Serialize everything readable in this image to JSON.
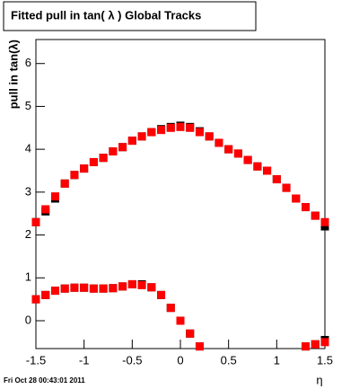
{
  "chart_data": {
    "type": "scatter",
    "title": "Fitted pull in tan( λ )  Global Tracks",
    "y_label": "pull in tan(λ)",
    "x_label": "η",
    "timestamp": "Fri Oct 28 00:43:01 2011",
    "xlim": [
      -1.5,
      1.5
    ],
    "ylim": [
      -0.65,
      6.56
    ],
    "xticks": [
      -1.5,
      -1,
      -0.5,
      0,
      0.5,
      1,
      1.5
    ],
    "yticks": [
      0,
      1,
      2,
      3,
      4,
      5,
      6
    ],
    "series": [
      {
        "color": "#000000",
        "x": [
          -1.5,
          -1.4,
          -1.3,
          -1.2,
          -1.1,
          -1.0,
          -0.9,
          -0.8,
          -0.7,
          -0.6,
          -0.5,
          -0.4,
          -0.3,
          -0.2,
          -0.1,
          0,
          0.1,
          0.2,
          0.3,
          0.4,
          0.5,
          0.6,
          0.7,
          0.8,
          0.9,
          1.0,
          1.1,
          1.2,
          1.3,
          1.4,
          1.5
        ],
        "values": [
          2.3,
          2.55,
          2.85,
          3.2,
          3.4,
          3.55,
          3.7,
          3.8,
          3.95,
          4.05,
          4.2,
          4.3,
          4.4,
          4.47,
          4.52,
          4.55,
          4.52,
          4.42,
          4.3,
          4.15,
          4.0,
          3.9,
          3.75,
          3.6,
          3.5,
          3.3,
          3.1,
          2.85,
          2.65,
          2.45,
          2.2
        ]
      },
      {
        "color": "#000000",
        "x": [
          -1.5,
          -1.4,
          -1.3,
          -1.2,
          -1.1,
          -1.0,
          -0.9,
          -0.8,
          -0.7,
          -0.6,
          -0.5,
          -0.4,
          -0.3,
          -0.2,
          -0.1,
          0,
          0.1,
          0.2,
          1.3,
          1.4,
          1.5
        ],
        "values": [
          0.5,
          0.6,
          0.7,
          0.75,
          0.77,
          0.77,
          0.75,
          0.75,
          0.76,
          0.8,
          0.85,
          0.85,
          0.78,
          0.6,
          0.3,
          0.0,
          -0.3,
          -0.6,
          -0.6,
          -0.55,
          -0.45
        ]
      },
      {
        "color": "#ff0000",
        "x": [
          -1.5,
          -1.4,
          -1.3,
          -1.2,
          -1.1,
          -1.0,
          -0.9,
          -0.8,
          -0.7,
          -0.6,
          -0.5,
          -0.4,
          -0.3,
          -0.2,
          -0.1,
          0,
          0.1,
          0.2,
          0.3,
          0.4,
          0.5,
          0.6,
          0.7,
          0.8,
          0.9,
          1.0,
          1.1,
          1.2,
          1.3,
          1.4,
          1.5
        ],
        "values": [
          2.3,
          2.6,
          2.9,
          3.2,
          3.4,
          3.55,
          3.7,
          3.8,
          3.95,
          4.05,
          4.2,
          4.3,
          4.4,
          4.45,
          4.5,
          4.52,
          4.5,
          4.4,
          4.3,
          4.15,
          4.0,
          3.9,
          3.75,
          3.6,
          3.5,
          3.3,
          3.1,
          2.85,
          2.65,
          2.45,
          2.3
        ]
      },
      {
        "color": "#ff0000",
        "x": [
          -1.5,
          -1.4,
          -1.3,
          -1.2,
          -1.1,
          -1.0,
          -0.9,
          -0.8,
          -0.7,
          -0.6,
          -0.5,
          -0.4,
          -0.3,
          -0.2,
          -0.1,
          0,
          0.1,
          0.2,
          1.3,
          1.4,
          1.5
        ],
        "values": [
          0.5,
          0.6,
          0.7,
          0.75,
          0.77,
          0.77,
          0.75,
          0.75,
          0.76,
          0.8,
          0.85,
          0.83,
          0.78,
          0.6,
          0.3,
          0.0,
          -0.3,
          -0.6,
          -0.6,
          -0.55,
          -0.5
        ]
      }
    ]
  }
}
